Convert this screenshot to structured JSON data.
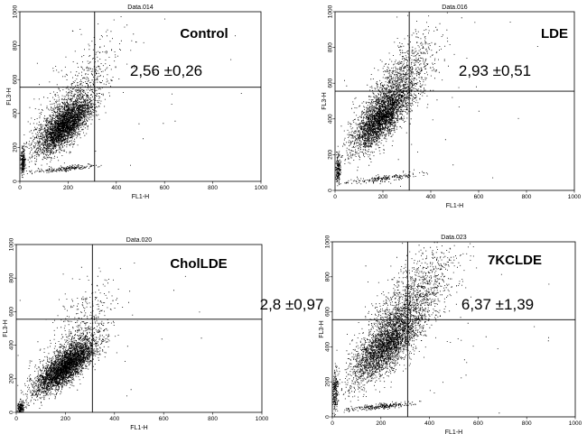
{
  "chart_data": [
    {
      "type": "scatter",
      "title": "Data.014",
      "condition": "Control",
      "annotation": "2,56 ±0,26",
      "xlabel": "FL1-H",
      "ylabel": "FL3-H",
      "xlim": [
        0,
        1000
      ],
      "ylim": [
        0,
        1000
      ],
      "xticks": [
        "0",
        "200",
        "400",
        "600",
        "800",
        "1000"
      ],
      "yticks": [
        "0",
        "200",
        "400",
        "600",
        "800",
        "1000"
      ],
      "gate_x": 310,
      "gate_y": 555,
      "point_color": "#000000",
      "clusters": [
        {
          "cx": 190,
          "cy": 330,
          "sx": 55,
          "sy": 80,
          "rho": 0.75,
          "n": 2600
        },
        {
          "cx": 180,
          "cy": 390,
          "sx": 70,
          "sy": 110,
          "rho": 0.75,
          "n": 1000
        },
        {
          "cx": 12,
          "cy": 120,
          "sx": 5,
          "sy": 40,
          "rho": 0.2,
          "n": 220
        },
        {
          "cx": 180,
          "cy": 75,
          "sx": 70,
          "sy": 12,
          "rho": 0.8,
          "n": 200
        },
        {
          "cx": 280,
          "cy": 620,
          "sx": 80,
          "sy": 150,
          "rho": 0.6,
          "n": 250
        },
        {
          "cx": 350,
          "cy": 500,
          "sx": 250,
          "sy": 300,
          "rho": 0.2,
          "n": 40
        }
      ]
    },
    {
      "type": "scatter",
      "title": "Data.016",
      "condition": "LDE",
      "annotation": "2,93 ±0,51",
      "xlabel": "FL1-H",
      "ylabel": "FL3-H",
      "xlim": [
        0,
        1000
      ],
      "ylim": [
        0,
        1000
      ],
      "xticks": [
        "0",
        "200",
        "400",
        "600",
        "800",
        "1000"
      ],
      "yticks": [
        "0",
        "200",
        "400",
        "600",
        "800",
        "1000"
      ],
      "gate_x": 310,
      "gate_y": 555,
      "point_color": "#000000",
      "clusters": [
        {
          "cx": 190,
          "cy": 400,
          "sx": 60,
          "sy": 90,
          "rho": 0.75,
          "n": 2400
        },
        {
          "cx": 230,
          "cy": 520,
          "sx": 75,
          "sy": 130,
          "rho": 0.7,
          "n": 1100
        },
        {
          "cx": 12,
          "cy": 120,
          "sx": 5,
          "sy": 40,
          "rho": 0.2,
          "n": 200
        },
        {
          "cx": 200,
          "cy": 70,
          "sx": 80,
          "sy": 15,
          "rho": 0.8,
          "n": 200
        },
        {
          "cx": 330,
          "cy": 700,
          "sx": 80,
          "sy": 140,
          "rho": 0.6,
          "n": 300
        },
        {
          "cx": 400,
          "cy": 500,
          "sx": 250,
          "sy": 300,
          "rho": 0.2,
          "n": 40
        }
      ]
    },
    {
      "type": "scatter",
      "title": "Data.020",
      "condition": "CholLDE",
      "annotation": "2,8 ±0,97",
      "xlabel": "FL1-H",
      "ylabel": "FL3-H",
      "xlim": [
        0,
        1000
      ],
      "ylim": [
        0,
        1000
      ],
      "xticks": [
        "0",
        "200",
        "400",
        "600",
        "800",
        "1000"
      ],
      "yticks": [
        "0",
        "200",
        "400",
        "600",
        "800",
        "1000"
      ],
      "gate_x": 310,
      "gate_y": 555,
      "point_color": "#000000",
      "clusters": [
        {
          "cx": 200,
          "cy": 270,
          "sx": 60,
          "sy": 75,
          "rho": 0.78,
          "n": 3000
        },
        {
          "cx": 200,
          "cy": 320,
          "sx": 70,
          "sy": 100,
          "rho": 0.75,
          "n": 900
        },
        {
          "cx": 15,
          "cy": 30,
          "sx": 8,
          "sy": 20,
          "rho": 0.2,
          "n": 200
        },
        {
          "cx": 280,
          "cy": 580,
          "sx": 70,
          "sy": 120,
          "rho": 0.6,
          "n": 220
        },
        {
          "cx": 350,
          "cy": 500,
          "sx": 250,
          "sy": 300,
          "rho": 0.2,
          "n": 40
        }
      ]
    },
    {
      "type": "scatter",
      "title": "Data.023",
      "condition": "7KCLDE",
      "annotation": "6,37 ±1,39",
      "xlabel": "FL1-H",
      "ylabel": "FL3-H",
      "xlim": [
        0,
        1000
      ],
      "ylim": [
        0,
        1000
      ],
      "xticks": [
        "0",
        "200",
        "400",
        "600",
        "800",
        "1000"
      ],
      "yticks": [
        "0",
        "200",
        "400",
        "600",
        "800",
        "1000"
      ],
      "gate_x": 310,
      "gate_y": 555,
      "point_color": "#000000",
      "clusters": [
        {
          "cx": 210,
          "cy": 390,
          "sx": 70,
          "sy": 100,
          "rho": 0.72,
          "n": 2300
        },
        {
          "cx": 290,
          "cy": 590,
          "sx": 85,
          "sy": 150,
          "rho": 0.7,
          "n": 1500
        },
        {
          "cx": 10,
          "cy": 150,
          "sx": 6,
          "sy": 60,
          "rho": 0.2,
          "n": 250
        },
        {
          "cx": 190,
          "cy": 60,
          "sx": 70,
          "sy": 12,
          "rho": 0.8,
          "n": 250
        },
        {
          "cx": 400,
          "cy": 780,
          "sx": 90,
          "sy": 120,
          "rho": 0.5,
          "n": 250
        },
        {
          "cx": 450,
          "cy": 500,
          "sx": 250,
          "sy": 300,
          "rho": 0.2,
          "n": 50
        }
      ]
    }
  ]
}
